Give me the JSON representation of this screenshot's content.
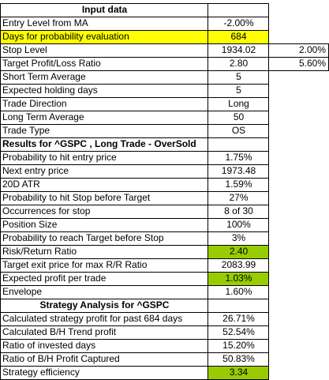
{
  "colors": {
    "yellow_highlight": "#ffff00",
    "green_highlight": "#99cc00",
    "grid": "#000000"
  },
  "rows": [
    {
      "label": "Input data",
      "value": "",
      "extra": "",
      "style": "section-center"
    },
    {
      "label": "Entry Level from MA",
      "value": "-2.00%",
      "extra": ""
    },
    {
      "label": "Days for probability evaluation",
      "value": "684",
      "extra": "",
      "highlight": "yellow-row"
    },
    {
      "label": "Stop Level",
      "value": "1934.02",
      "extra": "2.00%"
    },
    {
      "label": "Target Profit/Loss Ratio",
      "value": "2.80",
      "extra": "5.60%"
    },
    {
      "label": "Short Term Average",
      "value": "5",
      "extra": ""
    },
    {
      "label": "Expected holding days",
      "value": "5",
      "extra": ""
    },
    {
      "label": "Trade Direction",
      "value": "Long",
      "extra": ""
    },
    {
      "label": "Long Term Average",
      "value": "50",
      "extra": ""
    },
    {
      "label": "Trade Type",
      "value": "OS",
      "extra": ""
    },
    {
      "label": "Results for ^GSPC , Long Trade - OverSold",
      "value": "",
      "extra": "",
      "style": "section-left"
    },
    {
      "label": "Probability to hit entry price",
      "value": "1.75%",
      "extra": ""
    },
    {
      "label": "Next entry price",
      "value": "1973.48",
      "extra": ""
    },
    {
      "label": "20D ATR",
      "value": "1.59%",
      "extra": ""
    },
    {
      "label": "Probability to hit Stop before Target",
      "value": "27%",
      "extra": ""
    },
    {
      "label": "Occurrences for stop",
      "value": "8 of 30",
      "extra": ""
    },
    {
      "label": "Position Size",
      "value": "100%",
      "extra": ""
    },
    {
      "label": "Probability to reach Target before Stop",
      "value": "3%",
      "extra": ""
    },
    {
      "label": "Risk/Return Ratio",
      "value": "2.40",
      "extra": "",
      "highlight": "green-value"
    },
    {
      "label": "Target exit price for max R/R Ratio",
      "value": "2083.99",
      "extra": ""
    },
    {
      "label": "Expected profit per trade",
      "value": "1.03%",
      "extra": "",
      "highlight": "green-value"
    },
    {
      "label": "Envelope",
      "value": "1.60%",
      "extra": ""
    },
    {
      "label": "Strategy Analysis for ^GSPC",
      "value": "",
      "extra": "",
      "style": "section-center"
    },
    {
      "label": "Calculated strategy profit for past 684 days",
      "value": "26.71%",
      "extra": ""
    },
    {
      "label": "Calculated B/H Trend profit",
      "value": "52.54%",
      "extra": ""
    },
    {
      "label": "Ratio of invested days",
      "value": "15.20%",
      "extra": ""
    },
    {
      "label": "Ratio of B/H Profit Captured",
      "value": "50.83%",
      "extra": ""
    },
    {
      "label": "Strategy efficiency",
      "value": "3.34",
      "extra": "",
      "highlight": "green-value"
    }
  ]
}
